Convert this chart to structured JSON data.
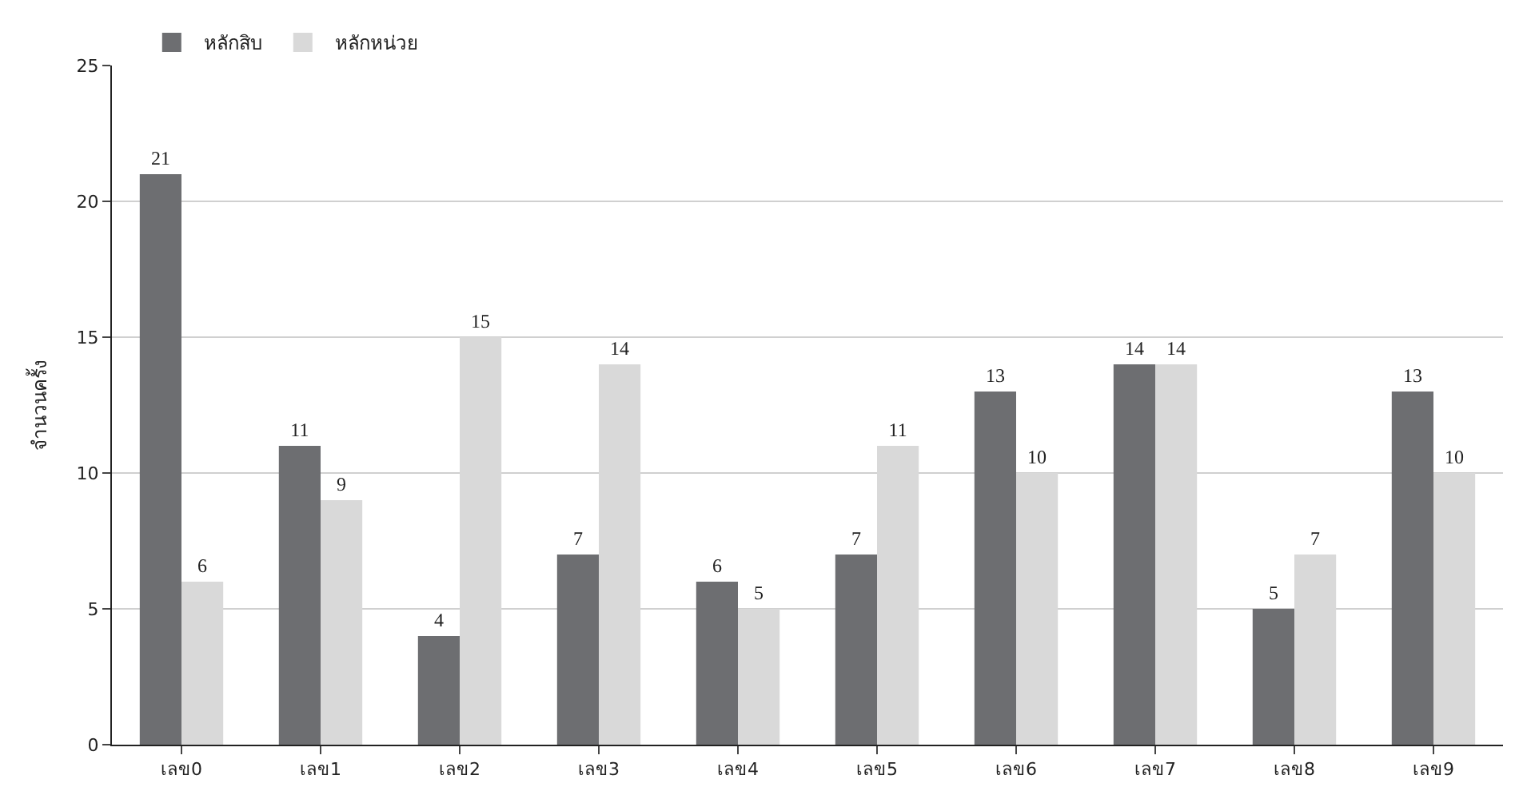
{
  "chart_data": {
    "type": "bar",
    "ylabel": "จำนวนครั้ง",
    "categories": [
      "เลข0",
      "เลข1",
      "เลข2",
      "เลข3",
      "เลข4",
      "เลข5",
      "เลข6",
      "เลข7",
      "เลข8",
      "เลข9"
    ],
    "series": [
      {
        "name": "หลักสิบ",
        "color": "#6d6e71",
        "values": [
          21,
          11,
          4,
          7,
          6,
          7,
          13,
          14,
          5,
          13
        ]
      },
      {
        "name": "หลักหน่วย",
        "color": "#d9d9d9",
        "values": [
          6,
          9,
          15,
          14,
          5,
          11,
          10,
          14,
          7,
          10
        ]
      }
    ],
    "ylim": [
      0,
      25
    ],
    "yticks": [
      0,
      5,
      10,
      15,
      20,
      25
    ],
    "grid": "y",
    "legend": "top left",
    "data_labels": true
  }
}
